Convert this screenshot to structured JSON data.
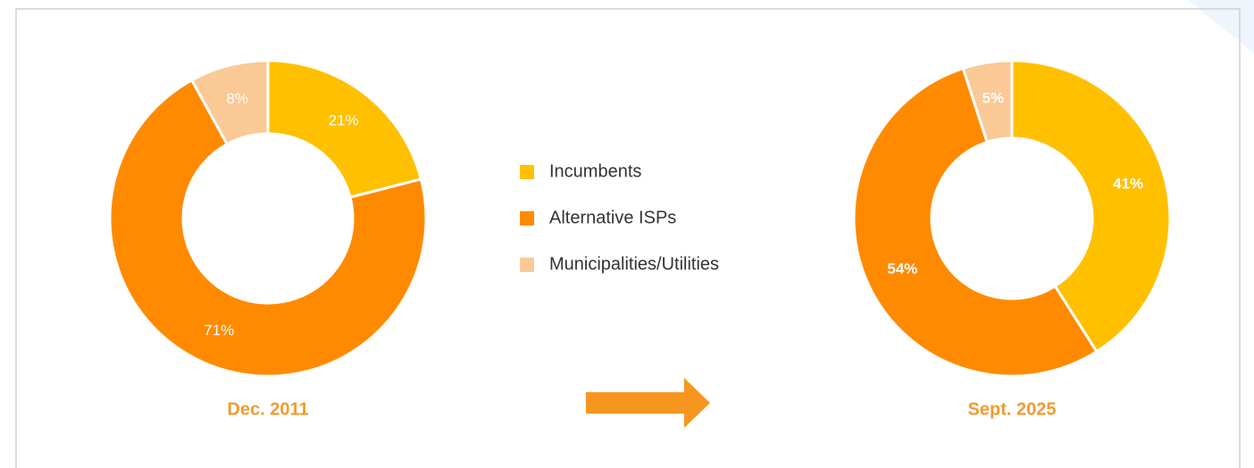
{
  "chart_data": [
    {
      "type": "pie",
      "donut": true,
      "title": "Dec. 2011",
      "categories": [
        "Incumbents",
        "Alternative ISPs",
        "Municipalities/Utilities"
      ],
      "values": [
        21,
        71,
        8
      ],
      "value_labels": [
        "21%",
        "71%",
        "8%"
      ],
      "colors": [
        "#ffc000",
        "#ff8a00",
        "#fbc995"
      ]
    },
    {
      "type": "pie",
      "donut": true,
      "title": "Sept. 2025",
      "categories": [
        "Incumbents",
        "Alternative ISPs",
        "Municipalities/Utilities"
      ],
      "values": [
        41,
        54,
        5
      ],
      "value_labels": [
        "41%",
        "54%",
        "5%"
      ],
      "colors": [
        "#ffc000",
        "#ff8a00",
        "#fbc995"
      ]
    }
  ]
}
